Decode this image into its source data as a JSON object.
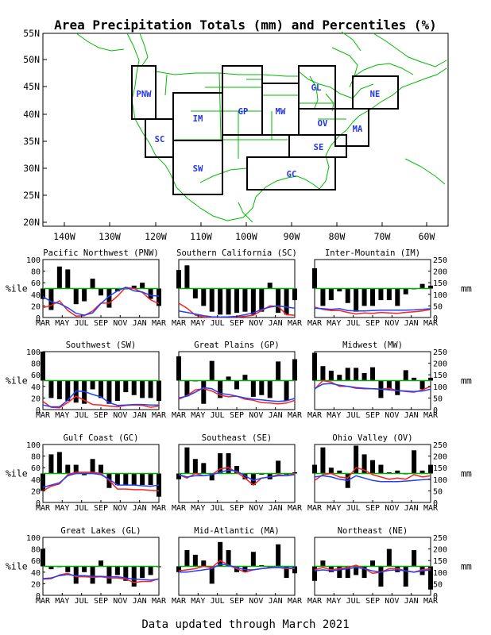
{
  "figure": {
    "title": "Area Precipitation Totals (mm) and Percentiles (%)",
    "footer": "Data updated through March 2021",
    "left_unit": "%ile",
    "right_unit": "mm"
  },
  "map": {
    "lat_labels": [
      "55N",
      "50N",
      "45N",
      "40N",
      "35N",
      "30N",
      "25N",
      "20N"
    ],
    "lon_labels": [
      "140W",
      "130W",
      "120W",
      "110W",
      "100W",
      "90W",
      "80W",
      "70W",
      "60W"
    ],
    "region_labels": [
      "PNW",
      "SC",
      "IM",
      "SW",
      "GP",
      "MW",
      "GL",
      "OV",
      "SE",
      "GC",
      "MA",
      "NE"
    ]
  },
  "colors": {
    "percentile_line": "#ff2020",
    "total_line": "#2040ff",
    "median_line": "#00b000",
    "bars": "#000000",
    "map_lines": "#00bb00",
    "region_text": "#2233ee"
  },
  "chart_data": [
    {
      "type": "bar",
      "title": "Pacific Northwest (PNW)",
      "region": "PNW",
      "ylim": [
        0,
        100
      ],
      "y2lim": [
        0,
        250
      ],
      "x_labels": [
        "MAR",
        "MAY",
        "JUL",
        "SEP",
        "NOV",
        "JAN",
        "MAR"
      ],
      "percentile_bars": [
        32,
        13,
        88,
        83,
        23,
        28,
        67,
        38,
        17,
        45,
        50,
        55,
        60,
        32,
        20
      ],
      "series": [
        {
          "values": [
            42,
            52,
            72,
            30,
            6,
            8,
            28,
            62,
            62,
            92,
            130,
            125,
            108,
            76,
            60
          ]
        },
        {
          "values": [
            90,
            68,
            60,
            42,
            18,
            10,
            20,
            60,
            92,
            115,
            130,
            115,
            110,
            95,
            92
          ]
        }
      ]
    },
    {
      "type": "bar",
      "title": "Southern California (SC)",
      "region": "SC",
      "ylim": [
        0,
        100
      ],
      "y2lim": [
        0,
        250
      ],
      "x_labels": [
        "MAR",
        "MAY",
        "JUL",
        "SEP",
        "NOV",
        "JAN",
        "MAR"
      ],
      "percentile_bars": [
        82,
        90,
        33,
        20,
        10,
        5,
        5,
        8,
        10,
        5,
        10,
        60,
        8,
        5,
        30
      ],
      "series": [
        {
          "values": [
            62,
            40,
            10,
            2,
            1,
            1,
            2,
            2,
            5,
            10,
            30,
            50,
            48,
            12,
            10
          ]
        },
        {
          "values": [
            28,
            22,
            15,
            8,
            3,
            2,
            3,
            5,
            12,
            20,
            35,
            45,
            50,
            45,
            40
          ]
        }
      ]
    },
    {
      "type": "bar",
      "title": "Inter-Mountain (IM)",
      "region": "IM",
      "ylim": [
        0,
        100
      ],
      "y2lim": [
        0,
        250
      ],
      "x_labels": [
        "MAR",
        "MAY",
        "JUL",
        "SEP",
        "NOV",
        "JAN",
        "MAR"
      ],
      "percentile_bars": [
        85,
        20,
        30,
        45,
        25,
        10,
        20,
        20,
        30,
        30,
        20,
        40,
        50,
        58,
        55
      ],
      "series": [
        {
          "values": [
            45,
            35,
            30,
            30,
            22,
            15,
            20,
            18,
            22,
            20,
            18,
            22,
            25,
            28,
            35
          ]
        },
        {
          "values": [
            40,
            38,
            35,
            38,
            30,
            28,
            28,
            30,
            32,
            32,
            32,
            32,
            33,
            35,
            38
          ]
        }
      ]
    },
    {
      "type": "bar",
      "title": "Southwest (SW)",
      "region": "SW",
      "ylim": [
        0,
        100
      ],
      "y2lim": [
        0,
        250
      ],
      "x_labels": [
        "MAR",
        "MAY",
        "JUL",
        "SEP",
        "NOV",
        "JAN",
        "MAR"
      ],
      "percentile_bars": [
        100,
        20,
        18,
        15,
        12,
        10,
        35,
        20,
        10,
        15,
        30,
        25,
        20,
        20,
        15
      ],
      "series": [
        {
          "values": [
            35,
            10,
            8,
            30,
            58,
            40,
            22,
            20,
            15,
            12,
            18,
            20,
            18,
            10,
            15
          ]
        },
        {
          "values": [
            20,
            12,
            12,
            40,
            80,
            78,
            65,
            55,
            30,
            18,
            20,
            22,
            22,
            20,
            20
          ]
        }
      ]
    },
    {
      "type": "bar",
      "title": "Great Plains (GP)",
      "region": "GP",
      "ylim": [
        0,
        100
      ],
      "y2lim": [
        0,
        250
      ],
      "x_labels": [
        "MAR",
        "MAY",
        "JUL",
        "SEP",
        "NOV",
        "JAN",
        "MAR"
      ],
      "percentile_bars": [
        92,
        23,
        50,
        10,
        84,
        20,
        57,
        35,
        60,
        22,
        25,
        20,
        83,
        15,
        87
      ],
      "series": [
        {
          "values": [
            45,
            60,
            85,
            90,
            80,
            62,
            55,
            58,
            45,
            40,
            30,
            28,
            25,
            28,
            40
          ]
        },
        {
          "values": [
            50,
            58,
            75,
            95,
            90,
            70,
            65,
            58,
            50,
            45,
            42,
            38,
            35,
            38,
            48
          ]
        }
      ]
    },
    {
      "type": "bar",
      "title": "Midwest (MW)",
      "region": "MW",
      "ylim": [
        0,
        100
      ],
      "y2lim": [
        0,
        250
      ],
      "x_labels": [
        "MAR",
        "MAY",
        "JUL",
        "SEP",
        "NOV",
        "JAN",
        "MAR"
      ],
      "percentile_bars": [
        98,
        75,
        67,
        60,
        72,
        72,
        63,
        73,
        20,
        35,
        25,
        68,
        55,
        35,
        55
      ],
      "series": [
        {
          "values": [
            88,
            125,
            118,
            100,
            100,
            92,
            90,
            90,
            88,
            92,
            82,
            78,
            75,
            85,
            100
          ]
        },
        {
          "values": [
            90,
            110,
            112,
            105,
            100,
            95,
            92,
            90,
            88,
            85,
            82,
            80,
            78,
            80,
            88
          ]
        }
      ]
    },
    {
      "type": "bar",
      "title": "Gulf Coast (GC)",
      "region": "GC",
      "ylim": [
        0,
        100
      ],
      "y2lim": [
        0,
        250
      ],
      "x_labels": [
        "MAR",
        "MAY",
        "JUL",
        "SEP",
        "NOV",
        "JAN",
        "MAR"
      ],
      "percentile_bars": [
        20,
        83,
        87,
        65,
        65,
        47,
        75,
        65,
        25,
        30,
        30,
        30,
        30,
        30,
        10
      ],
      "series": [
        {
          "values": [
            50,
            70,
            80,
            120,
            130,
            130,
            130,
            125,
            95,
            58,
            58,
            55,
            55,
            52,
            50
          ]
        },
        {
          "values": [
            65,
            75,
            85,
            115,
            125,
            125,
            125,
            120,
            100,
            75,
            75,
            75,
            72,
            70,
            75
          ]
        }
      ]
    },
    {
      "type": "bar",
      "title": "Southeast (SE)",
      "region": "SE",
      "ylim": [
        0,
        100
      ],
      "y2lim": [
        0,
        250
      ],
      "x_labels": [
        "MAR",
        "MAY",
        "JUL",
        "SEP",
        "NOV",
        "JAN",
        "MAR"
      ],
      "percentile_bars": [
        40,
        95,
        75,
        68,
        38,
        85,
        85,
        63,
        40,
        30,
        48,
        40,
        72,
        48,
        52
      ],
      "series": [
        {
          "values": [
            120,
            105,
            125,
            115,
            120,
            145,
            150,
            130,
            105,
            75,
            105,
            110,
            120,
            115,
            125
          ]
        },
        {
          "values": [
            120,
            110,
            115,
            115,
            120,
            130,
            140,
            135,
            115,
            95,
            105,
            110,
            115,
            115,
            120
          ]
        }
      ]
    },
    {
      "type": "bar",
      "title": "Ohio Valley (OV)",
      "region": "OV",
      "ylim": [
        0,
        100
      ],
      "y2lim": [
        0,
        250
      ],
      "x_labels": [
        "MAR",
        "MAY",
        "JUL",
        "SEP",
        "NOV",
        "JAN",
        "MAR"
      ],
      "percentile_bars": [
        65,
        95,
        60,
        55,
        25,
        98,
        83,
        73,
        65,
        52,
        55,
        50,
        90,
        55,
        65
      ],
      "series": [
        {
          "values": [
            95,
            120,
            125,
            110,
            105,
            150,
            140,
            120,
            110,
            100,
            105,
            100,
            120,
            110,
            115
          ]
        },
        {
          "values": [
            110,
            115,
            110,
            100,
            95,
            115,
            105,
            95,
            90,
            90,
            90,
            92,
            95,
            98,
            100
          ]
        }
      ]
    },
    {
      "type": "bar",
      "title": "Great Lakes (GL)",
      "region": "GL",
      "ylim": [
        0,
        100
      ],
      "y2lim": [
        0,
        250
      ],
      "x_labels": [
        "MAR",
        "MAY",
        "JUL",
        "SEP",
        "NOV",
        "JAN",
        "MAR"
      ],
      "percentile_bars": [
        80,
        45,
        50,
        40,
        20,
        40,
        20,
        60,
        20,
        35,
        25,
        15,
        30,
        35,
        50
      ],
      "series": [
        {
          "values": [
            70,
            72,
            88,
            95,
            80,
            80,
            78,
            80,
            75,
            75,
            70,
            55,
            60,
            60,
            72
          ]
        },
        {
          "values": [
            72,
            75,
            85,
            90,
            85,
            85,
            82,
            82,
            80,
            80,
            75,
            70,
            68,
            66,
            70
          ]
        }
      ]
    },
    {
      "type": "bar",
      "title": "Mid-Atlantic (MA)",
      "region": "MA",
      "ylim": [
        0,
        100
      ],
      "y2lim": [
        0,
        250
      ],
      "x_labels": [
        "MAR",
        "MAY",
        "JUL",
        "SEP",
        "NOV",
        "JAN",
        "MAR"
      ],
      "percentile_bars": [
        40,
        78,
        70,
        60,
        20,
        92,
        78,
        40,
        40,
        75,
        52,
        48,
        88,
        30,
        38
      ],
      "series": [
        {
          "values": [
            105,
            110,
            115,
            125,
            120,
            150,
            130,
            115,
            100,
            110,
            115,
            120,
            120,
            115,
            115
          ]
        },
        {
          "values": [
            100,
            100,
            105,
            110,
            115,
            135,
            130,
            120,
            110,
            110,
            115,
            118,
            120,
            118,
            118
          ]
        }
      ]
    },
    {
      "type": "bar",
      "title": "Northeast (NE)",
      "region": "NE",
      "ylim": [
        0,
        100
      ],
      "y2lim": [
        0,
        250
      ],
      "x_labels": [
        "MAR",
        "MAY",
        "JUL",
        "SEP",
        "NOV",
        "JAN",
        "MAR"
      ],
      "percentile_bars": [
        25,
        60,
        40,
        30,
        30,
        35,
        30,
        60,
        15,
        80,
        40,
        15,
        78,
        35,
        10
      ],
      "series": [
        {
          "values": [
            110,
            120,
            110,
            115,
            120,
            130,
            115,
            95,
            100,
            115,
            115,
            105,
            100,
            110,
            115
          ]
        },
        {
          "values": [
            105,
            110,
            105,
            110,
            115,
            120,
            115,
            105,
            100,
            108,
            110,
            105,
            100,
            105,
            110
          ]
        }
      ]
    }
  ]
}
